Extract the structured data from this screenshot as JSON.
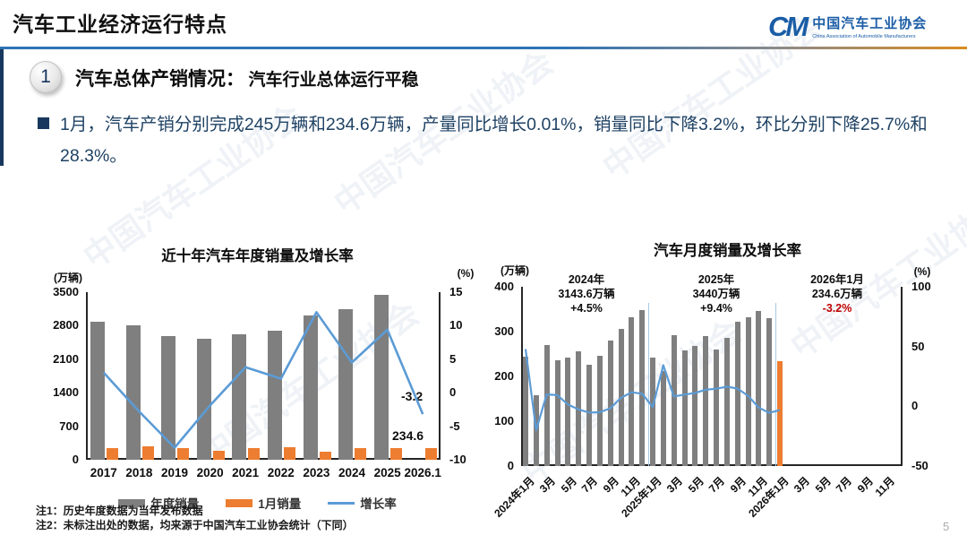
{
  "header": {
    "title": "汽车工业经济运行特点"
  },
  "logo": {
    "mark": "CM",
    "name_cn": "中国汽车工业协会",
    "name_en": "China Association of Automobile Manufacturers"
  },
  "section": {
    "badge": "1",
    "heading": "汽车总体产销情况：",
    "subheading": "汽车行业总体运行平稳"
  },
  "bullet": {
    "text": "1月，汽车产销分别完成245万辆和234.6万辆，产量同比增长0.01%，销量同比下降3.2%，环比分别下降25.7%和28.3%。"
  },
  "watermark": {
    "text": "中国汽车工业协会"
  },
  "colors": {
    "gray": "#7F7F7F",
    "orange": "#ED7D31",
    "blue": "#5B9BD5",
    "red": "#C00000",
    "navy": "#1F4264",
    "separator": "#A6C9E8"
  },
  "chart_data": [
    {
      "type": "bar+line",
      "title": "近十年汽车年度销量及增长率",
      "unit_left": "(万辆)",
      "unit_right": "(%)",
      "categories": [
        "2017",
        "2018",
        "2019",
        "2020",
        "2021",
        "2022",
        "2023",
        "2024",
        "2025",
        "2026.1"
      ],
      "series": [
        {
          "name": "年度销量",
          "type": "bar",
          "color": "gray",
          "values": [
            2887.9,
            2808.1,
            2576.9,
            2531.1,
            2627.5,
            2686.4,
            3009.4,
            3143.6,
            3440,
            null
          ]
        },
        {
          "name": "1月销量",
          "type": "bar",
          "color": "orange",
          "values": [
            251.9,
            280.9,
            236.7,
            194.1,
            250.3,
            253.1,
            164.9,
            243.9,
            242.3,
            234.6
          ]
        },
        {
          "name": "增长率",
          "type": "line",
          "axis": "right",
          "color": "blue",
          "values": [
            3.0,
            -2.8,
            -8.2,
            -1.9,
            3.8,
            2.1,
            12.0,
            4.5,
            9.4,
            -3.2
          ]
        }
      ],
      "y_left": {
        "min": 0,
        "max": 3500,
        "ticks": [
          0,
          700,
          1400,
          2100,
          2800,
          3500
        ]
      },
      "y_right": {
        "min": -10,
        "max": 15,
        "ticks": [
          -10,
          -5,
          0,
          5,
          10,
          15
        ]
      },
      "legend": [
        "年度销量",
        "1月销量",
        "增长率"
      ],
      "annotations": [
        {
          "text": "-3.2"
        },
        {
          "text": "234.6"
        }
      ]
    },
    {
      "type": "bar+line",
      "title": "汽车月度销量及增长率",
      "unit_left": "(万辆)",
      "unit_right": "(%)",
      "x_labels": [
        "2024年1月",
        "3月",
        "5月",
        "7月",
        "9月",
        "11月",
        "2025年1月",
        "3月",
        "5月",
        "7月",
        "9月",
        "11月",
        "2026年1月",
        "3月",
        "5月",
        "7月",
        "9月",
        "11月"
      ],
      "n_slots": 36,
      "bars": {
        "values": [
          243.9,
          158.4,
          269.4,
          235.9,
          241.7,
          255.2,
          226.2,
          245.3,
          280.9,
          305.3,
          331.6,
          348.9,
          242.3,
          212.9,
          291.5,
          259.0,
          268.6,
          290.4,
          259.3,
          285.7,
          322.6,
          332.2,
          345.9,
          329.8,
          234.6
        ],
        "colors": [
          "gray",
          "gray",
          "gray",
          "gray",
          "gray",
          "gray",
          "gray",
          "gray",
          "gray",
          "gray",
          "gray",
          "gray",
          "gray",
          "gray",
          "gray",
          "gray",
          "gray",
          "gray",
          "gray",
          "gray",
          "gray",
          "gray",
          "gray",
          "gray",
          "orange"
        ]
      },
      "line": {
        "name": "增长率",
        "axis": "right",
        "color": "blue",
        "values": [
          47.9,
          -19.9,
          9.9,
          9.3,
          1.5,
          -2.7,
          -5.2,
          -5.0,
          -1.7,
          7.0,
          11.7,
          10.5,
          -0.6,
          34.4,
          8.2,
          9.8,
          11.2,
          13.8,
          14.7,
          16.4,
          14.9,
          8.8,
          -1.0,
          -5.5,
          -3.2
        ]
      },
      "separators_after_index": [
        11,
        23
      ],
      "y_left": {
        "min": 0,
        "max": 400,
        "ticks": [
          0,
          100,
          200,
          300,
          400
        ]
      },
      "y_right": {
        "min": -50,
        "max": 100,
        "ticks": [
          -50,
          0,
          50,
          100
        ]
      },
      "annotations": [
        {
          "lines": [
            "2024年",
            "3143.6万辆",
            "+4.5%"
          ],
          "highlight": false
        },
        {
          "lines": [
            "2025年",
            "3440万辆",
            "+9.4%"
          ],
          "highlight": false
        },
        {
          "lines": [
            "2026年1月",
            "234.6万辆",
            "-3.2%"
          ],
          "highlight": true
        }
      ]
    }
  ],
  "notes": {
    "note1": "注1：历史年度数据为当年发布数据",
    "note2": "注2：未标注出处的数据，均来源于中国汽车工业协会统计（下同）"
  },
  "page": {
    "number": "5"
  }
}
